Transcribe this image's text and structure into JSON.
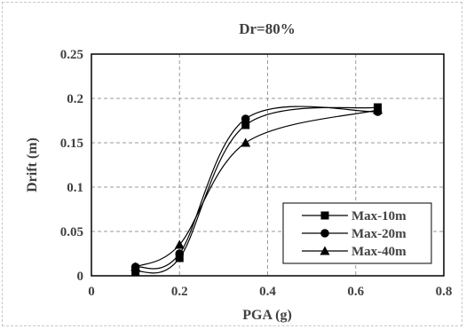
{
  "chart_data": {
    "type": "line",
    "title": "Dr=80%",
    "xlabel": "PGA (g)",
    "ylabel": "Drift (m)",
    "xlim": [
      0,
      0.8
    ],
    "ylim": [
      0,
      0.25
    ],
    "x_ticks": [
      "0",
      "0.2",
      "0.4",
      "0.6",
      "0.8"
    ],
    "y_ticks": [
      "0",
      "0.05",
      "0.1",
      "0.15",
      "0.2",
      "0.25"
    ],
    "grid": "dashed",
    "legend_position": "bottom-right",
    "series": [
      {
        "name": "Max-10m",
        "marker": "square",
        "x": [
          0.1,
          0.2,
          0.35,
          0.65
        ],
        "y": [
          0.005,
          0.02,
          0.17,
          0.19
        ]
      },
      {
        "name": "Max-20m",
        "marker": "circle",
        "x": [
          0.1,
          0.2,
          0.35,
          0.65
        ],
        "y": [
          0.01,
          0.025,
          0.177,
          0.185
        ]
      },
      {
        "name": "Max-40m",
        "marker": "triangle",
        "x": [
          0.1,
          0.2,
          0.35,
          0.65
        ],
        "y": [
          0.01,
          0.035,
          0.15,
          0.187
        ]
      }
    ]
  }
}
